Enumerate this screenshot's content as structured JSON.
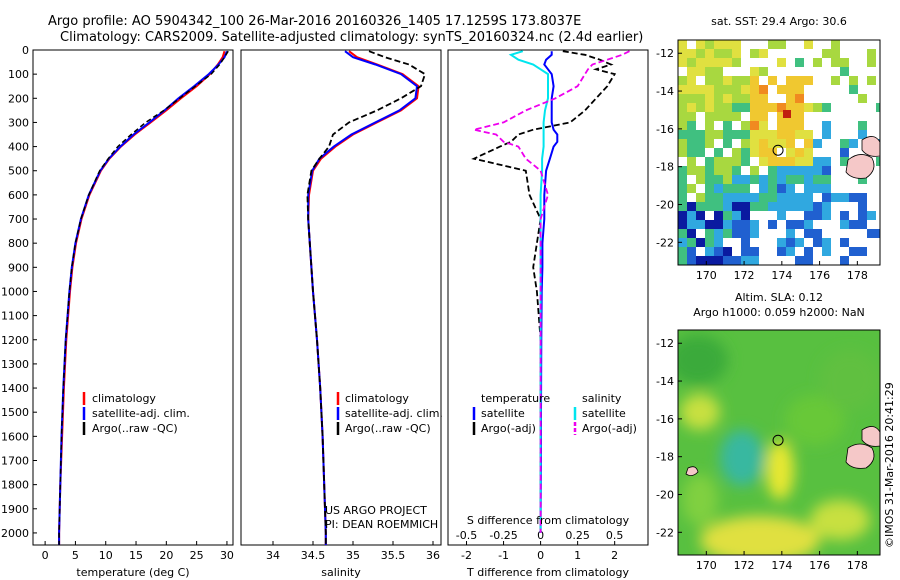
{
  "header": {
    "line1": "Argo profile: AO 5904342_100 26-Mar-2016 20160326_1405 17.1259S 173.8037E",
    "line2": "Climatology: CARS2009. Satellite-adjusted climatology: synTS_20160324.nc (2.4d earlier)"
  },
  "credit": {
    "project": "US ARGO PROJECT",
    "pi": "PI: DEAN ROEMMICH",
    "stamp": "©IMOS 31-Mar-2016 20:41:29"
  },
  "colors": {
    "climatology": "#ff0000",
    "satellite": "#0000ff",
    "argo": "#000000",
    "sat_salinity": "#00e5ee",
    "argo_salinity": "#ee00ee"
  },
  "chart_data": [
    {
      "type": "line",
      "xlabel": "temperature (deg C)",
      "xlim": [
        -2,
        31
      ],
      "xticks": [
        "0",
        "5",
        "10",
        "15",
        "20",
        "25",
        "30"
      ],
      "ylim": [
        0,
        2050
      ],
      "yticks": [
        "0",
        "100",
        "200",
        "300",
        "400",
        "500",
        "600",
        "700",
        "800",
        "900",
        "1000",
        "1100",
        "1200",
        "1300",
        "1400",
        "1500",
        "1600",
        "1700",
        "1800",
        "1900",
        "2000"
      ],
      "legend": [
        "climatology",
        "satellite-adj. clim.",
        "Argo(..raw -QC)"
      ],
      "depth": [
        5,
        30,
        60,
        100,
        150,
        200,
        250,
        300,
        350,
        400,
        450,
        500,
        600,
        700,
        800,
        900,
        1000,
        1200,
        1400,
        1600,
        1800,
        2000,
        2050
      ],
      "series": [
        {
          "name": "climatology",
          "values": [
            29.6,
            29.3,
            28.5,
            27.2,
            25.0,
            22.4,
            20.0,
            17.4,
            14.8,
            12.5,
            10.6,
            9.2,
            7.3,
            6.0,
            5.1,
            4.5,
            4.1,
            3.5,
            3.1,
            2.8,
            2.5,
            2.3,
            2.3
          ]
        },
        {
          "name": "satellite-adj. clim.",
          "values": [
            30.0,
            29.6,
            28.6,
            27.0,
            24.6,
            22.0,
            19.7,
            17.2,
            14.6,
            12.4,
            10.5,
            9.1,
            7.2,
            5.9,
            5.0,
            4.4,
            4.0,
            3.4,
            3.0,
            2.7,
            2.5,
            2.3,
            2.3
          ]
        },
        {
          "name": "Argo(..raw -QC)",
          "values": [
            30.2,
            29.6,
            28.8,
            27.4,
            24.8,
            22.2,
            19.6,
            16.6,
            14.2,
            12.0,
            10.4,
            9.0,
            7.2,
            5.9,
            5.0,
            4.4,
            4.0,
            3.4,
            3.0,
            2.7,
            2.5,
            2.3,
            2.3
          ]
        }
      ]
    },
    {
      "type": "line",
      "xlabel": "salinity",
      "xlim": [
        33.6,
        36.1
      ],
      "xticks": [
        "34",
        "34.5",
        "35",
        "35.5",
        "36"
      ],
      "ylim": [
        0,
        2050
      ],
      "legend": [
        "climatology",
        "satellite-adj. clim.",
        "Argo(..raw -QC)"
      ],
      "depth": [
        5,
        30,
        60,
        100,
        150,
        200,
        250,
        300,
        350,
        400,
        450,
        500,
        600,
        700,
        800,
        900,
        1000,
        1200,
        1400,
        1600,
        1800,
        2000,
        2050
      ],
      "series": [
        {
          "name": "climatology",
          "values": [
            34.95,
            35.05,
            35.3,
            35.62,
            35.82,
            35.8,
            35.6,
            35.3,
            35.0,
            34.78,
            34.6,
            34.5,
            34.45,
            34.44,
            34.46,
            34.48,
            34.5,
            34.55,
            34.59,
            34.62,
            34.64,
            34.66,
            34.66
          ]
        },
        {
          "name": "satellite-adj. clim.",
          "values": [
            34.9,
            35.0,
            35.28,
            35.6,
            35.8,
            35.78,
            35.58,
            35.28,
            34.98,
            34.76,
            34.58,
            34.49,
            34.44,
            34.44,
            34.46,
            34.48,
            34.5,
            34.55,
            34.59,
            34.62,
            34.64,
            34.66,
            34.66
          ]
        },
        {
          "name": "Argo(..raw -QC)",
          "values": [
            35.2,
            35.4,
            35.7,
            35.9,
            35.85,
            35.6,
            35.3,
            34.95,
            34.75,
            34.7,
            34.58,
            34.48,
            34.43,
            34.44,
            34.46,
            34.48,
            34.5,
            34.55,
            34.59,
            34.62,
            34.64,
            34.66,
            34.66
          ]
        }
      ]
    },
    {
      "type": "line",
      "xlabel": "T difference from climatology",
      "x2label": "S difference from climatology",
      "xlim": [
        -2.5,
        2.9
      ],
      "xticks": [
        "-2",
        "-1",
        "0",
        "1",
        "2"
      ],
      "x2ticks": [
        "-0.5",
        "-0.25",
        "0",
        "0.25",
        "0.5"
      ],
      "ylim": [
        0,
        2050
      ],
      "legend_temperature": [
        "temperature",
        "satellite",
        "Argo(-adj)"
      ],
      "legend_salinity": [
        "salinity",
        "satellite",
        "Argo(-adj)"
      ],
      "depth": [
        5,
        20,
        40,
        60,
        80,
        100,
        150,
        200,
        250,
        300,
        330,
        350,
        380,
        400,
        450,
        500,
        600,
        700,
        800,
        900,
        1000,
        1200,
        1500,
        1700,
        2000
      ],
      "series": [
        {
          "name": "T satellite",
          "values": [
            0.3,
            0.3,
            0.15,
            0.1,
            0.2,
            0.3,
            0.35,
            0.3,
            0.3,
            0.3,
            0.35,
            0.45,
            0.45,
            0.35,
            0.25,
            0.15,
            0.1,
            0.1,
            0.05,
            0.05,
            0.03,
            0.02,
            0.01,
            0.01,
            0.0
          ]
        },
        {
          "name": "T Argo(-adj)",
          "values": [
            0.6,
            1.2,
            1.6,
            1.9,
            1.5,
            2.0,
            1.8,
            1.5,
            1.2,
            0.8,
            -0.2,
            -0.6,
            -0.8,
            -1.1,
            -1.8,
            -0.4,
            -0.3,
            0.0,
            -0.1,
            -0.2,
            -0.1,
            0.0,
            0.0,
            0.0,
            0.0
          ]
        },
        {
          "name": "S satellite",
          "values": [
            -0.12,
            -0.2,
            -0.15,
            -0.05,
            0.0,
            0.05,
            0.05,
            0.05,
            0.03,
            0.02,
            0.02,
            0.02,
            0.02,
            0.02,
            0.01,
            0.01,
            0.0,
            0.0,
            0.0,
            0.0,
            0.0,
            0.0,
            0.0,
            0.0,
            0.0
          ]
        },
        {
          "name": "S Argo(-adj)",
          "values": [
            0.6,
            0.55,
            0.45,
            0.35,
            0.32,
            0.3,
            0.25,
            0.1,
            -0.1,
            -0.25,
            -0.45,
            -0.3,
            -0.25,
            -0.15,
            -0.1,
            0.0,
            0.05,
            0.0,
            0.0,
            0.0,
            0.0,
            0.0,
            0.0,
            0.0,
            0.0
          ]
        }
      ]
    },
    {
      "type": "heatmap",
      "title": "sat. SST: 29.4  Argo: 30.6",
      "xlim": [
        168.5,
        179.2
      ],
      "ylim": [
        -23.2,
        -11.3
      ],
      "xticks": [
        "170",
        "172",
        "174",
        "176",
        "178"
      ],
      "yticks": [
        "-12",
        "-14",
        "-16",
        "-18",
        "-20",
        "-22"
      ],
      "profile_position": {
        "lon": 173.8,
        "lat": -17.13
      }
    },
    {
      "type": "heatmap",
      "title": "Altim. SLA: 0.12",
      "subtitle": "Argo h1000: 0.059 h2000: NaN",
      "xlim": [
        168.5,
        179.2
      ],
      "ylim": [
        -23.2,
        -11.3
      ],
      "xticks": [
        "170",
        "172",
        "174",
        "176",
        "178"
      ],
      "yticks": [
        "-12",
        "-14",
        "-16",
        "-18",
        "-20",
        "-22"
      ],
      "profile_position": {
        "lon": 173.8,
        "lat": -17.13
      }
    }
  ]
}
